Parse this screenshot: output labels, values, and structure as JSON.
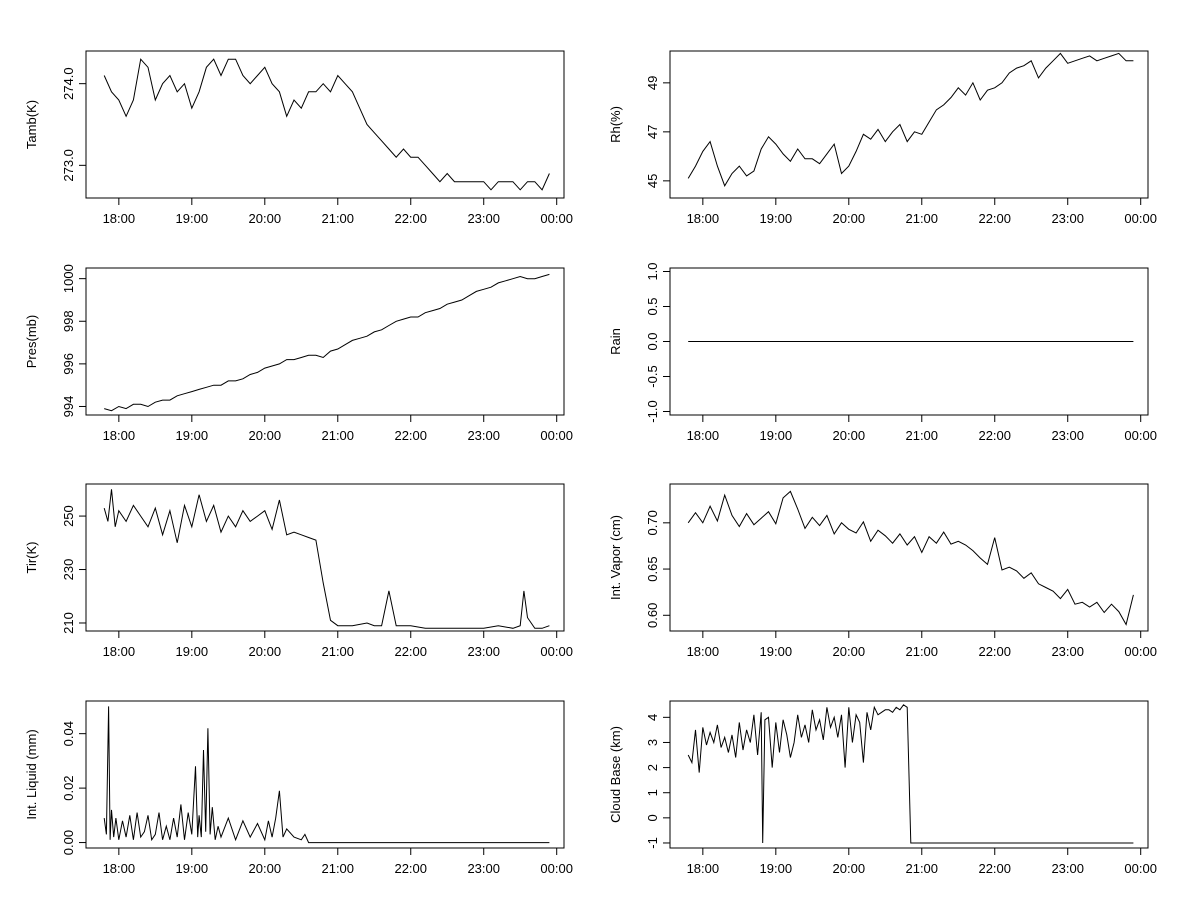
{
  "x_ticks": [
    "18:00",
    "19:00",
    "20:00",
    "21:00",
    "22:00",
    "23:00",
    "00:00"
  ],
  "chart_data": [
    {
      "type": "line",
      "ylabel": "Tamb(K)",
      "yticks": [
        "273.0",
        "274.0"
      ],
      "ytick_values": [
        273.0,
        274.0
      ],
      "xlim": [
        17.55,
        24.1
      ],
      "ylim": [
        272.6,
        274.4
      ],
      "x": [
        17.8,
        17.9,
        18.0,
        18.1,
        18.2,
        18.3,
        18.4,
        18.5,
        18.6,
        18.7,
        18.8,
        18.9,
        19.0,
        19.1,
        19.2,
        19.3,
        19.4,
        19.5,
        19.6,
        19.7,
        19.8,
        19.9,
        20.0,
        20.1,
        20.2,
        20.3,
        20.4,
        20.5,
        20.6,
        20.7,
        20.8,
        20.9,
        21.0,
        21.1,
        21.2,
        21.3,
        21.4,
        21.5,
        21.6,
        21.7,
        21.8,
        21.9,
        22.0,
        22.1,
        22.2,
        22.3,
        22.4,
        22.5,
        22.6,
        22.7,
        22.8,
        22.9,
        23.0,
        23.1,
        23.2,
        23.3,
        23.4,
        23.5,
        23.6,
        23.7,
        23.8,
        23.9
      ],
      "values": [
        274.1,
        273.9,
        273.8,
        273.6,
        273.8,
        274.3,
        274.2,
        273.8,
        274.0,
        274.1,
        273.9,
        274.0,
        273.7,
        273.9,
        274.2,
        274.3,
        274.1,
        274.3,
        274.3,
        274.1,
        274.0,
        274.1,
        274.2,
        274.0,
        273.9,
        273.6,
        273.8,
        273.7,
        273.9,
        273.9,
        274.0,
        273.9,
        274.1,
        274.0,
        273.9,
        273.7,
        273.5,
        273.4,
        273.3,
        273.2,
        273.1,
        273.2,
        273.1,
        273.1,
        273.0,
        272.9,
        272.8,
        272.9,
        272.8,
        272.8,
        272.8,
        272.8,
        272.8,
        272.7,
        272.8,
        272.8,
        272.8,
        272.7,
        272.8,
        272.8,
        272.7,
        272.9
      ]
    },
    {
      "type": "line",
      "ylabel": "Rh(%)",
      "yticks": [
        "45",
        "47",
        "49"
      ],
      "ytick_values": [
        45,
        47,
        49
      ],
      "xlim": [
        17.55,
        24.1
      ],
      "ylim": [
        44.3,
        50.3
      ],
      "x": [
        17.8,
        17.9,
        18.0,
        18.1,
        18.2,
        18.3,
        18.4,
        18.5,
        18.6,
        18.7,
        18.8,
        18.9,
        19.0,
        19.1,
        19.2,
        19.3,
        19.4,
        19.5,
        19.6,
        19.7,
        19.8,
        19.9,
        20.0,
        20.1,
        20.2,
        20.3,
        20.4,
        20.5,
        20.6,
        20.7,
        20.8,
        20.9,
        21.0,
        21.1,
        21.2,
        21.3,
        21.4,
        21.5,
        21.6,
        21.7,
        21.8,
        21.9,
        22.0,
        22.1,
        22.2,
        22.3,
        22.4,
        22.5,
        22.6,
        22.7,
        22.8,
        22.9,
        23.0,
        23.1,
        23.2,
        23.3,
        23.4,
        23.5,
        23.6,
        23.7,
        23.8,
        23.9
      ],
      "values": [
        45.1,
        45.6,
        46.2,
        46.6,
        45.6,
        44.8,
        45.3,
        45.6,
        45.2,
        45.4,
        46.3,
        46.8,
        46.5,
        46.1,
        45.8,
        46.3,
        45.9,
        45.9,
        45.7,
        46.1,
        46.5,
        45.3,
        45.6,
        46.2,
        46.9,
        46.7,
        47.1,
        46.6,
        47.0,
        47.3,
        46.6,
        47.0,
        46.9,
        47.4,
        47.9,
        48.1,
        48.4,
        48.8,
        48.5,
        49.0,
        48.3,
        48.7,
        48.8,
        49.0,
        49.4,
        49.6,
        49.7,
        49.9,
        49.2,
        49.6,
        49.9,
        50.2,
        49.8,
        49.9,
        50.0,
        50.1,
        49.9,
        50.0,
        50.1,
        50.2,
        49.9,
        49.9
      ]
    },
    {
      "type": "line",
      "ylabel": "Pres(mb)",
      "yticks": [
        "994",
        "996",
        "998",
        "1000"
      ],
      "ytick_values": [
        994,
        996,
        998,
        1000
      ],
      "xlim": [
        17.55,
        24.1
      ],
      "ylim": [
        993.6,
        1000.5
      ],
      "x": [
        17.8,
        17.9,
        18.0,
        18.1,
        18.2,
        18.3,
        18.4,
        18.5,
        18.6,
        18.7,
        18.8,
        18.9,
        19.0,
        19.1,
        19.2,
        19.3,
        19.4,
        19.5,
        19.6,
        19.7,
        19.8,
        19.9,
        20.0,
        20.1,
        20.2,
        20.3,
        20.4,
        20.5,
        20.6,
        20.7,
        20.8,
        20.9,
        21.0,
        21.1,
        21.2,
        21.3,
        21.4,
        21.5,
        21.6,
        21.7,
        21.8,
        21.9,
        22.0,
        22.1,
        22.2,
        22.3,
        22.4,
        22.5,
        22.6,
        22.7,
        22.8,
        22.9,
        23.0,
        23.1,
        23.2,
        23.3,
        23.4,
        23.5,
        23.6,
        23.7,
        23.8,
        23.9
      ],
      "values": [
        993.9,
        993.8,
        994.0,
        993.9,
        994.1,
        994.1,
        994.0,
        994.2,
        994.3,
        994.3,
        994.5,
        994.6,
        994.7,
        994.8,
        994.9,
        995.0,
        995.0,
        995.2,
        995.2,
        995.3,
        995.5,
        995.6,
        995.8,
        995.9,
        996.0,
        996.2,
        996.2,
        996.3,
        996.4,
        996.4,
        996.3,
        996.6,
        996.7,
        996.9,
        997.1,
        997.2,
        997.3,
        997.5,
        997.6,
        997.8,
        998.0,
        998.1,
        998.2,
        998.2,
        998.4,
        998.5,
        998.6,
        998.8,
        998.9,
        999.0,
        999.2,
        999.4,
        999.5,
        999.6,
        999.8,
        999.9,
        1000.0,
        1000.1,
        1000.0,
        1000.0,
        1000.1,
        1000.2
      ]
    },
    {
      "type": "line",
      "ylabel": "Rain",
      "yticks": [
        "-1.0",
        "-0.5",
        "0.0",
        "0.5",
        "1.0"
      ],
      "ytick_values": [
        -1.0,
        -0.5,
        0.0,
        0.5,
        1.0
      ],
      "xlim": [
        17.55,
        24.1
      ],
      "ylim": [
        -1.05,
        1.05
      ],
      "x": [
        17.8,
        23.9
      ],
      "values": [
        0.0,
        0.0
      ]
    },
    {
      "type": "line",
      "ylabel": "Tir(K)",
      "yticks": [
        "210",
        "230",
        "250"
      ],
      "ytick_values": [
        210,
        230,
        250
      ],
      "xlim": [
        17.55,
        24.1
      ],
      "ylim": [
        207,
        262
      ],
      "x": [
        17.8,
        17.85,
        17.9,
        17.95,
        18.0,
        18.1,
        18.2,
        18.3,
        18.4,
        18.5,
        18.6,
        18.7,
        18.8,
        18.9,
        19.0,
        19.1,
        19.2,
        19.3,
        19.4,
        19.5,
        19.6,
        19.7,
        19.8,
        19.9,
        20.0,
        20.1,
        20.2,
        20.3,
        20.4,
        20.5,
        20.6,
        20.7,
        20.8,
        20.9,
        21.0,
        21.2,
        21.4,
        21.5,
        21.6,
        21.7,
        21.8,
        21.9,
        22.0,
        22.2,
        22.4,
        22.6,
        22.8,
        23.0,
        23.2,
        23.4,
        23.5,
        23.55,
        23.6,
        23.7,
        23.8,
        23.9
      ],
      "values": [
        253,
        248,
        260,
        246,
        252,
        248,
        254,
        250,
        246,
        253,
        243,
        252,
        240,
        254,
        246,
        258,
        248,
        254,
        244,
        250,
        246,
        252,
        248,
        250,
        252,
        245,
        256,
        243,
        244,
        243,
        242,
        241,
        225,
        211,
        209,
        209,
        210,
        209,
        209,
        222,
        209,
        209,
        209,
        208,
        208,
        208,
        208,
        208,
        209,
        208,
        209,
        222,
        212,
        208,
        208,
        209
      ]
    },
    {
      "type": "line",
      "ylabel": "Int. Vapor (cm)",
      "yticks": [
        "0.60",
        "0.65",
        "0.70"
      ],
      "ytick_values": [
        0.6,
        0.65,
        0.7
      ],
      "xlim": [
        17.55,
        24.1
      ],
      "ylim": [
        0.583,
        0.742
      ],
      "x": [
        17.8,
        17.9,
        18.0,
        18.1,
        18.2,
        18.3,
        18.4,
        18.5,
        18.6,
        18.7,
        18.8,
        18.9,
        19.0,
        19.1,
        19.2,
        19.3,
        19.4,
        19.5,
        19.6,
        19.7,
        19.8,
        19.9,
        20.0,
        20.1,
        20.2,
        20.3,
        20.4,
        20.5,
        20.6,
        20.7,
        20.8,
        20.9,
        21.0,
        21.1,
        21.2,
        21.3,
        21.4,
        21.5,
        21.6,
        21.7,
        21.8,
        21.9,
        22.0,
        22.1,
        22.2,
        22.3,
        22.4,
        22.5,
        22.6,
        22.7,
        22.8,
        22.9,
        23.0,
        23.1,
        23.2,
        23.3,
        23.4,
        23.5,
        23.6,
        23.7,
        23.8,
        23.9
      ],
      "values": [
        0.7,
        0.711,
        0.7,
        0.718,
        0.702,
        0.73,
        0.708,
        0.696,
        0.71,
        0.698,
        0.705,
        0.712,
        0.699,
        0.727,
        0.734,
        0.715,
        0.694,
        0.706,
        0.697,
        0.708,
        0.688,
        0.7,
        0.693,
        0.689,
        0.701,
        0.68,
        0.692,
        0.686,
        0.678,
        0.688,
        0.676,
        0.685,
        0.668,
        0.685,
        0.678,
        0.69,
        0.677,
        0.68,
        0.676,
        0.67,
        0.662,
        0.655,
        0.684,
        0.649,
        0.652,
        0.648,
        0.64,
        0.646,
        0.634,
        0.63,
        0.626,
        0.618,
        0.628,
        0.612,
        0.614,
        0.609,
        0.614,
        0.603,
        0.612,
        0.604,
        0.59,
        0.622
      ]
    },
    {
      "type": "line",
      "ylabel": "Int. Liquid (mm)",
      "yticks": [
        "0.00",
        "0.02",
        "0.04"
      ],
      "ytick_values": [
        0.0,
        0.02,
        0.04
      ],
      "xlim": [
        17.55,
        24.1
      ],
      "ylim": [
        -0.002,
        0.052
      ],
      "x": [
        17.8,
        17.83,
        17.86,
        17.88,
        17.9,
        17.93,
        17.96,
        18.0,
        18.05,
        18.1,
        18.15,
        18.2,
        18.25,
        18.3,
        18.35,
        18.4,
        18.45,
        18.5,
        18.55,
        18.6,
        18.65,
        18.7,
        18.75,
        18.8,
        18.85,
        18.9,
        18.95,
        19.0,
        19.05,
        19.08,
        19.1,
        19.13,
        19.16,
        19.19,
        19.22,
        19.25,
        19.28,
        19.32,
        19.36,
        19.4,
        19.5,
        19.6,
        19.7,
        19.8,
        19.9,
        20.0,
        20.05,
        20.1,
        20.15,
        20.2,
        20.25,
        20.3,
        20.4,
        20.5,
        20.55,
        20.6,
        21.0,
        22.0,
        23.0,
        23.9
      ],
      "values": [
        0.009,
        0.003,
        0.05,
        0.001,
        0.012,
        0.002,
        0.009,
        0.001,
        0.008,
        0.002,
        0.01,
        0.001,
        0.011,
        0.002,
        0.004,
        0.01,
        0.001,
        0.003,
        0.011,
        0.001,
        0.006,
        0.001,
        0.009,
        0.002,
        0.014,
        0.001,
        0.011,
        0.003,
        0.028,
        0.002,
        0.01,
        0.002,
        0.034,
        0.004,
        0.042,
        0.003,
        0.013,
        0.001,
        0.006,
        0.002,
        0.009,
        0.001,
        0.008,
        0.002,
        0.007,
        0.001,
        0.008,
        0.002,
        0.009,
        0.019,
        0.002,
        0.005,
        0.002,
        0.001,
        0.003,
        0.0,
        0.0,
        0.0,
        0.0,
        0.0
      ]
    },
    {
      "type": "line",
      "ylabel": "Cloud Base (km)",
      "yticks": [
        "-1",
        "0",
        "1",
        "2",
        "3",
        "4"
      ],
      "ytick_values": [
        -1,
        0,
        1,
        2,
        3,
        4
      ],
      "xlim": [
        17.55,
        24.1
      ],
      "ylim": [
        -1.2,
        4.65
      ],
      "x": [
        17.8,
        17.85,
        17.9,
        17.95,
        18.0,
        18.05,
        18.1,
        18.15,
        18.2,
        18.25,
        18.3,
        18.35,
        18.4,
        18.45,
        18.5,
        18.55,
        18.6,
        18.65,
        18.7,
        18.75,
        18.8,
        18.82,
        18.85,
        18.9,
        18.95,
        19.0,
        19.05,
        19.1,
        19.15,
        19.2,
        19.25,
        19.3,
        19.35,
        19.4,
        19.45,
        19.5,
        19.55,
        19.6,
        19.65,
        19.7,
        19.75,
        19.8,
        19.85,
        19.9,
        19.95,
        20.0,
        20.05,
        20.1,
        20.15,
        20.2,
        20.25,
        20.3,
        20.35,
        20.4,
        20.45,
        20.5,
        20.55,
        20.6,
        20.65,
        20.7,
        20.75,
        20.8,
        20.85,
        21.0,
        22.0,
        23.0,
        23.9
      ],
      "values": [
        2.5,
        2.2,
        3.5,
        1.8,
        3.6,
        2.9,
        3.4,
        3.0,
        3.7,
        2.8,
        3.2,
        2.6,
        3.3,
        2.4,
        3.8,
        2.7,
        3.5,
        3.0,
        4.1,
        2.5,
        4.2,
        -1.0,
        3.9,
        4.0,
        2.0,
        3.8,
        2.6,
        3.9,
        3.3,
        2.4,
        3.0,
        4.1,
        3.2,
        3.7,
        3.0,
        4.3,
        3.5,
        3.9,
        3.1,
        4.4,
        3.6,
        4.0,
        3.2,
        4.1,
        2.0,
        4.4,
        3.0,
        4.1,
        3.8,
        2.2,
        4.2,
        3.5,
        4.4,
        4.1,
        4.2,
        4.3,
        4.3,
        4.2,
        4.4,
        4.3,
        4.5,
        4.4,
        -1.0,
        -1.0,
        -1.0,
        -1.0,
        -1.0
      ]
    }
  ]
}
